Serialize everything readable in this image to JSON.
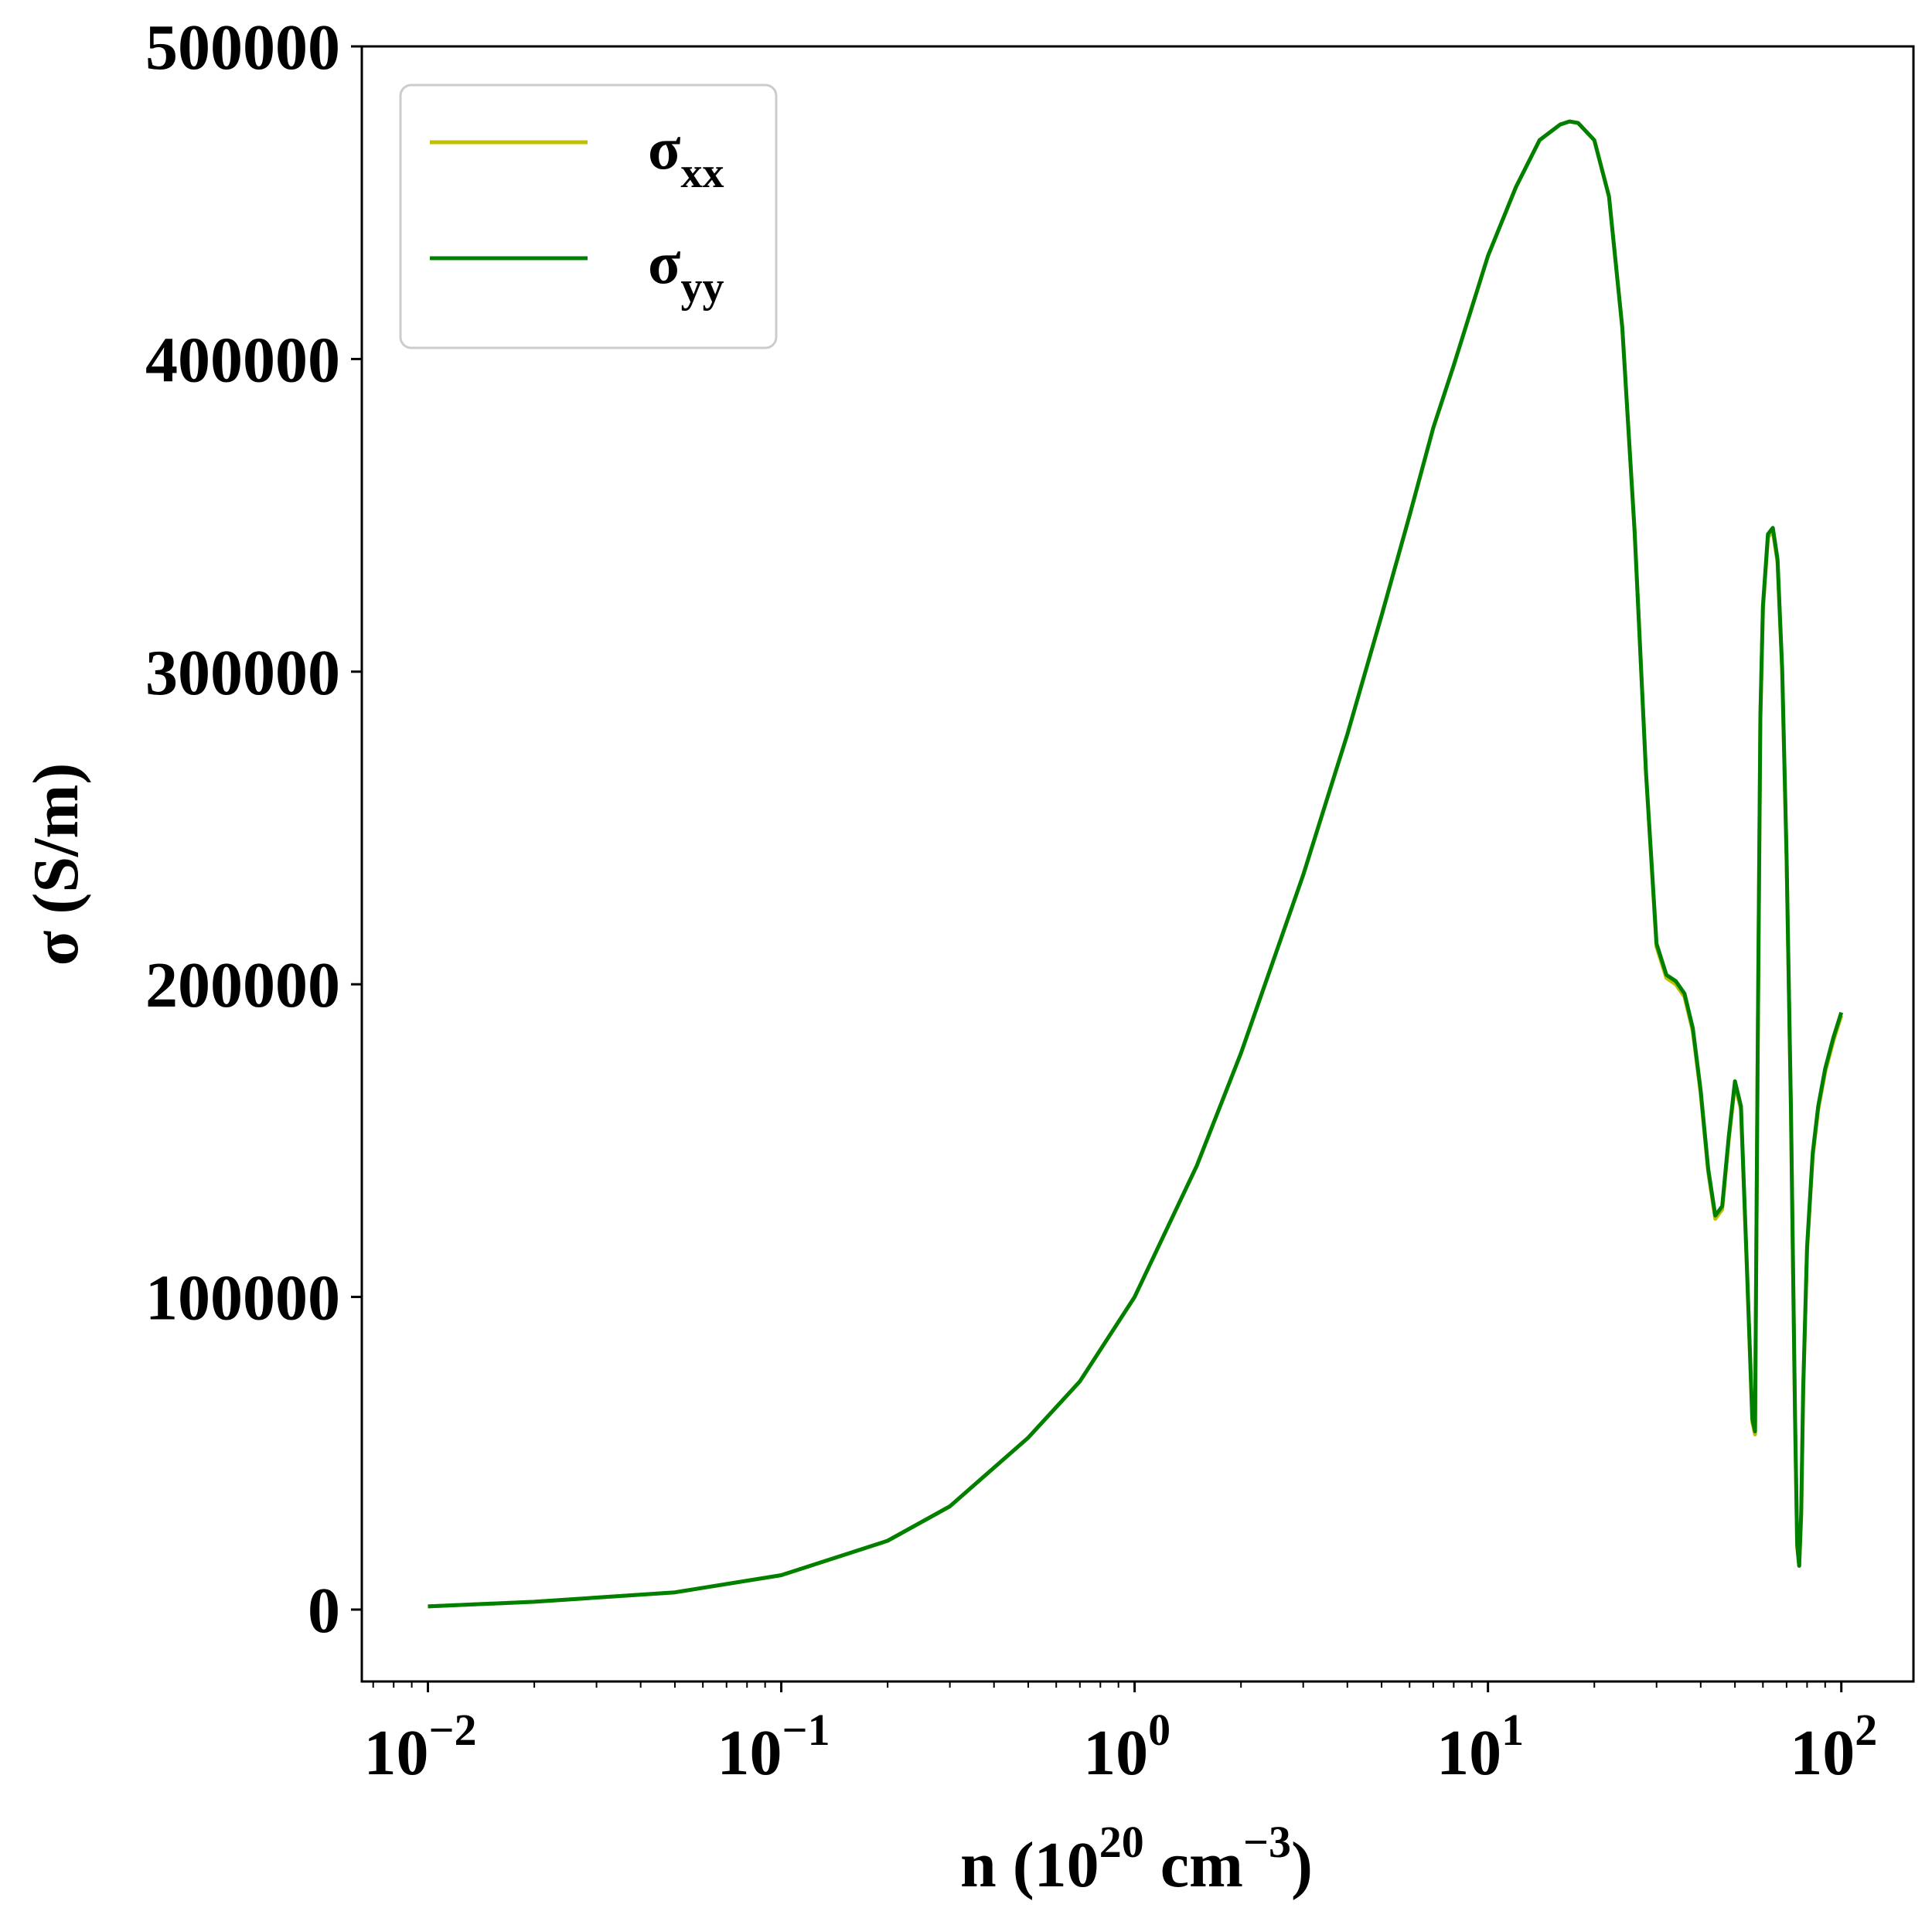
{
  "chart_data": {
    "type": "line",
    "xscale": "log",
    "xlim": [
      0.0065,
      160
    ],
    "ylim": [
      -23000,
      500000
    ],
    "xlabel": {
      "prefix": "n (10",
      "exp1": "20",
      "mid": " cm",
      "exp2": "−3",
      "suffix": ")"
    },
    "ylabel": "σ (S/m)",
    "title": "",
    "grid": false,
    "legend": {
      "position": "top-left"
    },
    "yticks": [
      {
        "value": 0,
        "label": "0"
      },
      {
        "value": 100000,
        "label": "100000"
      },
      {
        "value": 200000,
        "label": "200000"
      },
      {
        "value": 300000,
        "label": "300000"
      },
      {
        "value": 400000,
        "label": "400000"
      },
      {
        "value": 500000,
        "label": "500000"
      }
    ],
    "xticks": [
      {
        "value": 0.01,
        "base": "10",
        "exp": "−2"
      },
      {
        "value": 0.1,
        "base": "10",
        "exp": "−1"
      },
      {
        "value": 1,
        "base": "10",
        "exp": "0"
      },
      {
        "value": 10,
        "base": "10",
        "exp": "1"
      },
      {
        "value": 100,
        "base": "10",
        "exp": "2"
      }
    ],
    "series": [
      {
        "name": "σxx",
        "label_main": "σ",
        "label_sub": "xx",
        "color": "#bfbf00",
        "x": [
          0.01,
          0.02,
          0.05,
          0.1,
          0.2,
          0.3,
          0.5,
          0.7,
          1.0,
          1.5,
          2.0,
          3.0,
          4.0,
          5.0,
          6.0,
          7.0,
          8.0,
          10.0,
          12.0,
          14.0,
          16.0,
          17.0,
          18.0,
          20.0,
          22.0,
          24.0,
          26.0,
          28.0,
          30.0,
          32.0,
          34.0,
          36.0,
          38.0,
          40.0,
          42.0,
          44.0,
          46.0,
          48.0,
          50.0,
          52.0,
          54.0,
          56.0,
          57.0,
          58.0,
          59.0,
          60.0,
          62.0,
          64.0,
          66.0,
          68.0,
          70.0,
          72.0,
          74.0,
          75.0,
          76.0,
          77.0,
          78.0,
          80.0,
          83.0,
          86.0,
          90.0,
          95.0,
          100.0
        ],
        "y": [
          1000,
          2500,
          5500,
          11000,
          22000,
          33000,
          55000,
          73000,
          100000,
          142000,
          178000,
          235000,
          280000,
          318000,
          350000,
          378000,
          398000,
          433000,
          455000,
          470000,
          475000,
          476000,
          475500,
          470000,
          452000,
          410000,
          345000,
          268000,
          212000,
          202000,
          200000,
          196000,
          185000,
          165000,
          140000,
          125000,
          128000,
          150000,
          168000,
          160000,
          110000,
          60000,
          56000,
          180000,
          285000,
          320000,
          343000,
          345000,
          335000,
          300000,
          240000,
          160000,
          60000,
          20000,
          14000,
          30000,
          70000,
          115000,
          145000,
          160000,
          172000,
          182000,
          190000
        ]
      },
      {
        "name": "σyy",
        "label_main": "σ",
        "label_sub": "yy",
        "color": "#008000",
        "x": [
          0.01,
          0.02,
          0.05,
          0.1,
          0.2,
          0.3,
          0.5,
          0.7,
          1.0,
          1.5,
          2.0,
          3.0,
          4.0,
          5.0,
          6.0,
          7.0,
          8.0,
          10.0,
          12.0,
          14.0,
          16.0,
          17.0,
          18.0,
          20.0,
          22.0,
          24.0,
          26.0,
          28.0,
          30.0,
          32.0,
          34.0,
          36.0,
          38.0,
          40.0,
          42.0,
          44.0,
          46.0,
          48.0,
          50.0,
          52.0,
          54.0,
          56.0,
          57.0,
          58.0,
          59.0,
          60.0,
          62.0,
          64.0,
          66.0,
          68.0,
          70.0,
          72.0,
          74.0,
          75.0,
          76.0,
          77.0,
          78.0,
          80.0,
          83.0,
          86.0,
          90.0,
          95.0,
          100.0
        ],
        "y": [
          1000,
          2500,
          5500,
          11000,
          22000,
          33000,
          55000,
          73000,
          100000,
          142000,
          178000,
          235000,
          280000,
          318000,
          350000,
          378000,
          398000,
          433000,
          455000,
          470000,
          475000,
          476000,
          475500,
          470000,
          452000,
          410000,
          345000,
          268000,
          213000,
          203000,
          201000,
          197000,
          186000,
          166000,
          141000,
          126000,
          129000,
          151000,
          169000,
          161000,
          111000,
          61000,
          57000,
          181000,
          286000,
          321000,
          344000,
          346000,
          336000,
          301000,
          241000,
          161000,
          61000,
          21000,
          14000,
          31000,
          71000,
          116000,
          146000,
          161000,
          173000,
          183000,
          191000
        ]
      }
    ]
  }
}
